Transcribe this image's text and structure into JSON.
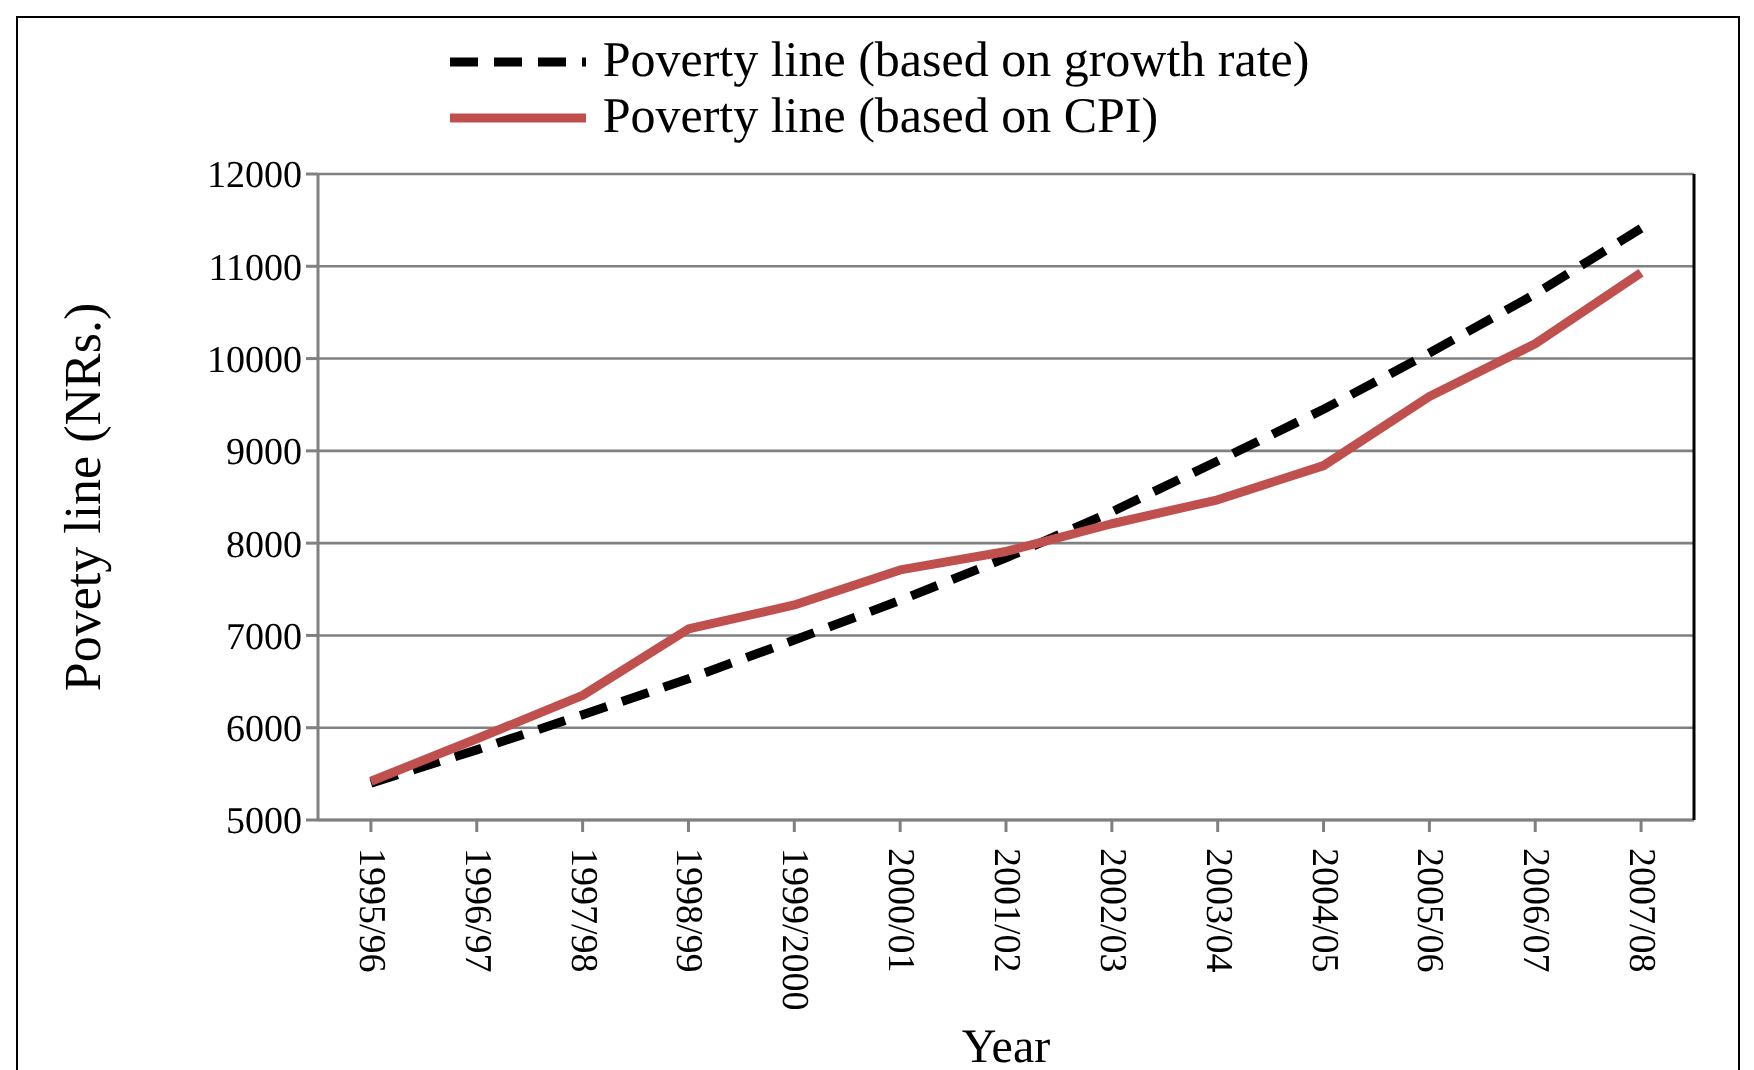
{
  "chart_data": {
    "type": "line",
    "xlabel": "Year",
    "ylabel": "Povety line (NRs.)",
    "categories": [
      "1995/96",
      "1996/97",
      "1997/98",
      "1998/99",
      "1999/2000",
      "2000/01",
      "2001/02",
      "2002/03",
      "2003/04",
      "2004/05",
      "2005/06",
      "2006/07",
      "2007/08"
    ],
    "series": [
      {
        "name": "Poverty line (based on growth rate)",
        "color": "#000000",
        "line_style": "dashed",
        "values": [
          5400,
          5760,
          6140,
          6530,
          6950,
          7380,
          7840,
          8340,
          8890,
          9450,
          10060,
          10700,
          11410
        ]
      },
      {
        "name": "Poverty line (based on CPI)",
        "color": "#c0504d",
        "line_style": "solid",
        "values": [
          5420,
          5880,
          6350,
          7070,
          7330,
          7710,
          7910,
          8210,
          8470,
          8840,
          9590,
          10160,
          10930
        ]
      }
    ],
    "ylim": [
      5000,
      12000
    ],
    "yticks": [
      5000,
      6000,
      7000,
      8000,
      9000,
      10000,
      11000,
      12000
    ],
    "grid": "y",
    "legend": "top",
    "marker": "none"
  }
}
